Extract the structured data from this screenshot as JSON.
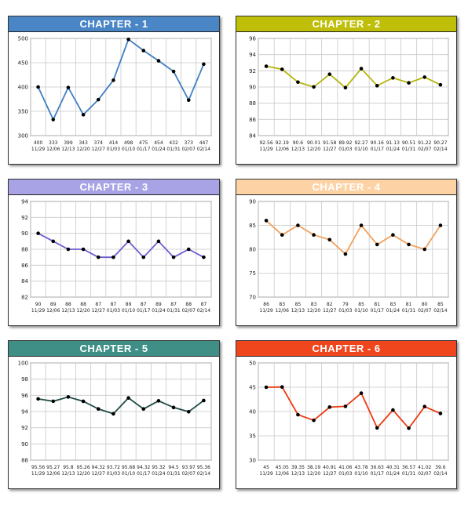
{
  "chart_data": [
    {
      "type": "line",
      "title": "CHAPTER - 1",
      "header_color": "#4a86c6",
      "line_color": "#3f7fc2",
      "ylim": [
        300,
        500
      ],
      "yticks": [
        300,
        350,
        400,
        450,
        500
      ],
      "grid": true,
      "x": [
        "11/29",
        "12/06",
        "12/13",
        "12/20",
        "12/27",
        "01/03",
        "01/10",
        "01/17",
        "01/24",
        "01/31",
        "02/07",
        "02/14"
      ],
      "value_labels": [
        "400",
        "333",
        "399",
        "343",
        "374",
        "414",
        "498",
        "475",
        "454",
        "432",
        "373",
        "447"
      ],
      "values": [
        400,
        333,
        399,
        343,
        374,
        414,
        498,
        475,
        454,
        432,
        373,
        447
      ]
    },
    {
      "type": "line",
      "title": "CHAPTER - 2",
      "header_color": "#bfbf0a",
      "line_color": "#b5b50c",
      "ylim": [
        84,
        96
      ],
      "yticks": [
        84,
        86,
        88,
        90,
        92,
        94,
        96
      ],
      "grid": true,
      "x": [
        "11/29",
        "12/06",
        "12/13",
        "12/20",
        "12/27",
        "01/03",
        "01/10",
        "01/17",
        "01/24",
        "01/31",
        "02/07",
        "02/14"
      ],
      "value_labels": [
        "92.56",
        "92.19",
        "90.6",
        "90.01",
        "91.58",
        "89.92",
        "92.27",
        "90.16",
        "91.13",
        "90.51",
        "91.22",
        "90.27"
      ],
      "values": [
        92.56,
        92.19,
        90.6,
        90.01,
        91.58,
        89.92,
        92.27,
        90.16,
        91.13,
        90.51,
        91.22,
        90.27
      ]
    },
    {
      "type": "line",
      "title": "CHAPTER - 3",
      "header_color": "#a7a3e4",
      "line_color": "#6b5fcf",
      "ylim": [
        82,
        94
      ],
      "yticks": [
        82,
        84,
        86,
        88,
        90,
        92,
        94
      ],
      "grid": true,
      "x": [
        "11/29",
        "12/06",
        "12/13",
        "12/20",
        "12/27",
        "01/03",
        "01/10",
        "01/17",
        "01/24",
        "01/31",
        "02/07",
        "02/14"
      ],
      "value_labels": [
        "90",
        "89",
        "88",
        "88",
        "87",
        "87",
        "89",
        "87",
        "89",
        "87",
        "88",
        "87"
      ],
      "values": [
        90,
        89,
        88,
        88,
        87,
        87,
        89,
        87,
        89,
        87,
        88,
        87
      ]
    },
    {
      "type": "line",
      "title": "CHAPTER - 4",
      "header_color": "#fdd3a6",
      "line_color": "#f2a25c",
      "ylim": [
        70,
        90
      ],
      "yticks": [
        70,
        75,
        80,
        85,
        90
      ],
      "grid": true,
      "x": [
        "11/29",
        "12/06",
        "12/13",
        "12/20",
        "12/27",
        "01/03",
        "01/10",
        "01/17",
        "01/24",
        "01/31",
        "02/07",
        "02/14"
      ],
      "value_labels": [
        "86",
        "83",
        "85",
        "83",
        "82",
        "79",
        "85",
        "81",
        "83",
        "81",
        "80",
        "85"
      ],
      "values": [
        86,
        83,
        85,
        83,
        82,
        79,
        85,
        81,
        83,
        81,
        80,
        85
      ]
    },
    {
      "type": "line",
      "title": "CHAPTER - 5",
      "header_color": "#3f8f86",
      "line_color": "#1f4d48",
      "ylim": [
        88,
        100
      ],
      "yticks": [
        88,
        90,
        92,
        94,
        96,
        98,
        100
      ],
      "grid": true,
      "x": [
        "11/29",
        "12/06",
        "12/13",
        "12/20",
        "12/27",
        "01/03",
        "01/10",
        "01/17",
        "01/24",
        "01/31",
        "02/07",
        "02/14"
      ],
      "value_labels": [
        "95.56",
        "95.27",
        "95.8",
        "95.26",
        "94.32",
        "93.72",
        "95.68",
        "94.32",
        "95.32",
        "94.5",
        "93.97",
        "95.36"
      ],
      "values": [
        95.56,
        95.27,
        95.8,
        95.26,
        94.32,
        93.72,
        95.68,
        94.32,
        95.32,
        94.5,
        93.97,
        95.36
      ]
    },
    {
      "type": "line",
      "title": "CHAPTER - 6",
      "header_color": "#f0461e",
      "line_color": "#ee3a10",
      "ylim": [
        30,
        50
      ],
      "yticks": [
        30,
        35,
        40,
        45,
        50
      ],
      "grid": true,
      "x": [
        "11/29",
        "12/06",
        "12/13",
        "12/20",
        "12/27",
        "01/03",
        "01/10",
        "01/17",
        "01/24",
        "01/31",
        "02/07",
        "02/14"
      ],
      "value_labels": [
        "45",
        "45.05",
        "39.35",
        "38.19",
        "40.91",
        "41.06",
        "43.78",
        "36.63",
        "40.31",
        "36.57",
        "41.02",
        "39.6"
      ],
      "values": [
        45,
        45.05,
        39.35,
        38.19,
        40.91,
        41.06,
        43.78,
        36.63,
        40.31,
        36.57,
        41.02,
        39.6
      ]
    }
  ]
}
